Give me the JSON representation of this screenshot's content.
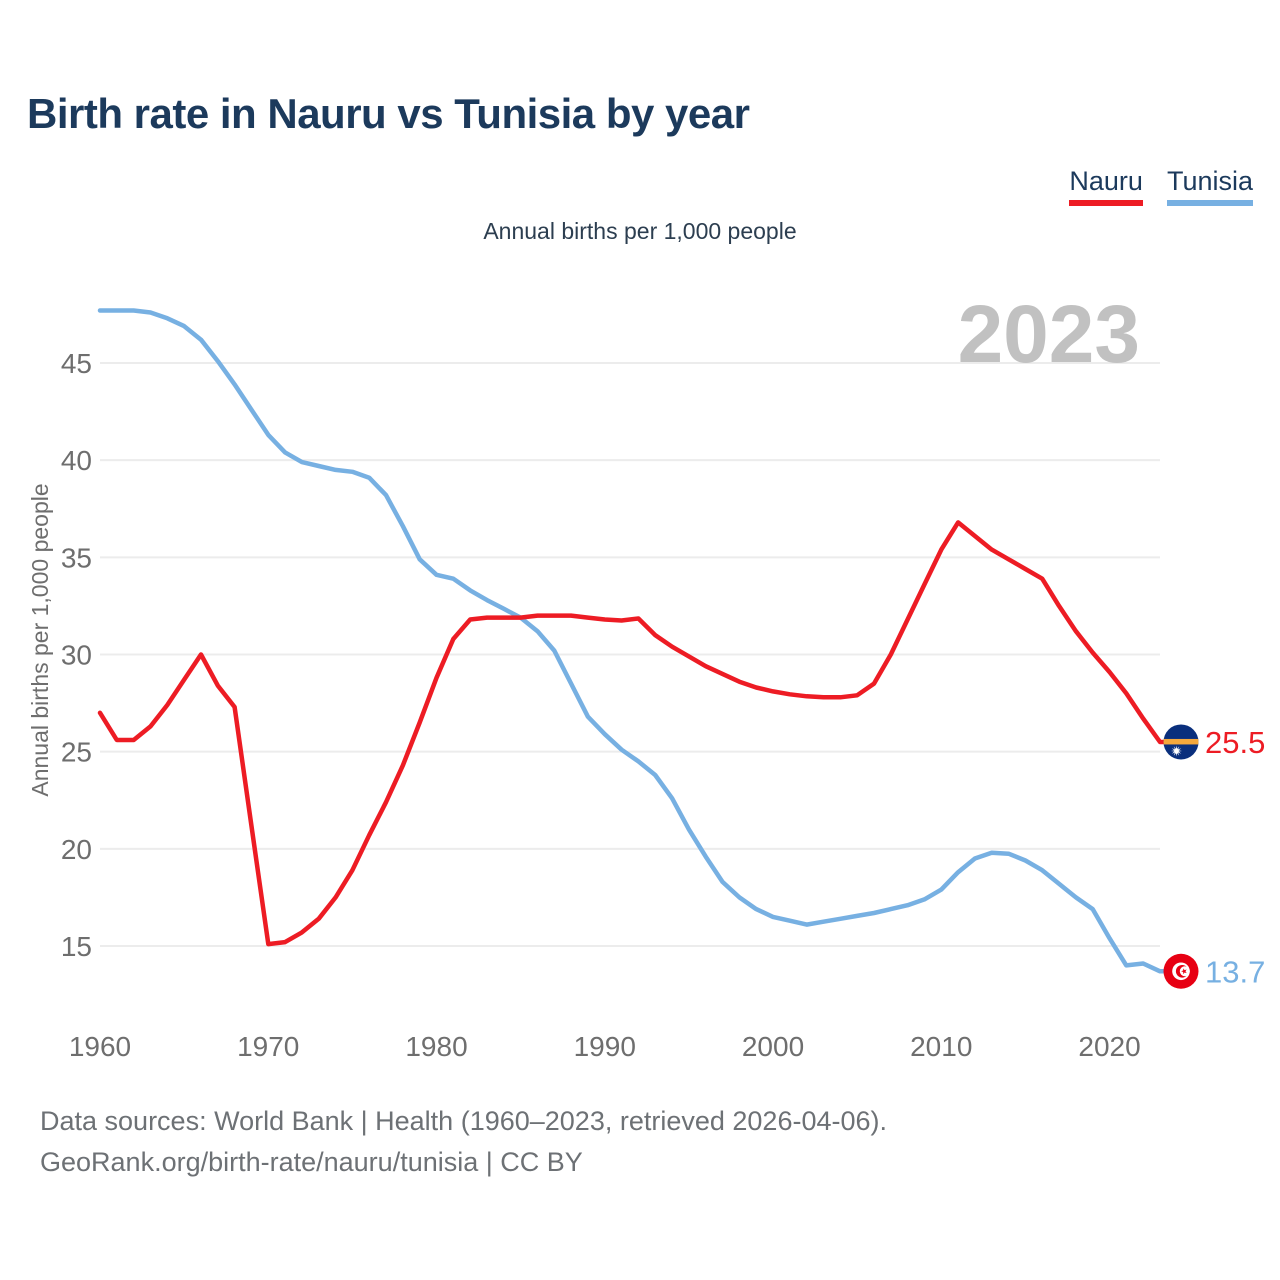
{
  "page": {
    "title": "Birth rate in Nauru vs Tunisia by year",
    "subtitle": "Annual births per 1,000 people",
    "watermark_year": "2023",
    "footer_line1": "Data sources: World Bank | Health (1960–2023, retrieved 2026-04-06).",
    "footer_line2": "GeoRank.org/birth-rate/nauru/tunisia | CC BY"
  },
  "legend": {
    "items": [
      {
        "label": "Nauru",
        "color": "#ed1c24"
      },
      {
        "label": "Tunisia",
        "color": "#77b0e2"
      }
    ]
  },
  "chart_data": {
    "type": "line",
    "title": "Birth rate in Nauru vs Tunisia by year",
    "subtitle": "Annual births per 1,000 people",
    "ylabel": "Annual births per 1,000 people",
    "grid": true,
    "legend_position": "top-right",
    "x_start": 1960,
    "x_end": 2023,
    "x_ticks": [
      1960,
      1970,
      1980,
      1990,
      2000,
      2010,
      2020
    ],
    "y_ticks": [
      15,
      20,
      25,
      30,
      35,
      40,
      45
    ],
    "y_grid_range": [
      15,
      45
    ],
    "colors": {
      "grid": "#ececec",
      "tick_text": "#6e6e6e",
      "axis_title": "#6e6e6e",
      "watermark": "#c1c1c1"
    },
    "series": [
      {
        "name": "Tunisia",
        "color": "#77b0e2",
        "end_label": "13.7",
        "end_flag": "tunisia-flag",
        "values": [
          47.7,
          47.7,
          47.7,
          47.6,
          47.3,
          46.9,
          46.2,
          45.1,
          43.9,
          42.6,
          41.3,
          40.4,
          39.9,
          39.7,
          39.5,
          39.4,
          39.1,
          38.2,
          36.6,
          34.9,
          34.1,
          33.9,
          33.3,
          32.8,
          32.35,
          31.9,
          31.2,
          30.2,
          28.5,
          26.8,
          25.9,
          25.1,
          24.5,
          23.8,
          22.6,
          21.0,
          19.6,
          18.3,
          17.5,
          16.9,
          16.5,
          16.3,
          16.1,
          16.25,
          16.4,
          16.55,
          16.7,
          16.9,
          17.1,
          17.4,
          17.9,
          18.8,
          19.5,
          19.8,
          19.75,
          19.4,
          18.9,
          18.2,
          17.5,
          16.9,
          15.4,
          14.0,
          14.1,
          13.7
        ]
      },
      {
        "name": "Nauru",
        "color": "#ed1c24",
        "end_label": "25.5",
        "end_flag": "nauru-flag",
        "values": [
          27.0,
          25.6,
          25.6,
          26.3,
          27.4,
          28.7,
          30.0,
          28.4,
          27.3,
          21.2,
          15.1,
          15.2,
          15.7,
          16.4,
          17.5,
          18.9,
          20.7,
          22.4,
          24.3,
          26.5,
          28.8,
          30.8,
          31.8,
          31.9,
          31.9,
          31.9,
          32.0,
          32.0,
          32.0,
          31.9,
          31.8,
          31.75,
          31.85,
          31.0,
          30.4,
          29.9,
          29.4,
          29.0,
          28.6,
          28.3,
          28.1,
          27.95,
          27.85,
          27.8,
          27.8,
          27.9,
          28.5,
          30.0,
          31.8,
          33.6,
          35.4,
          36.8,
          36.1,
          35.4,
          34.9,
          34.4,
          33.9,
          32.5,
          31.2,
          30.1,
          29.1,
          28.0,
          26.7,
          25.5
        ]
      }
    ]
  }
}
